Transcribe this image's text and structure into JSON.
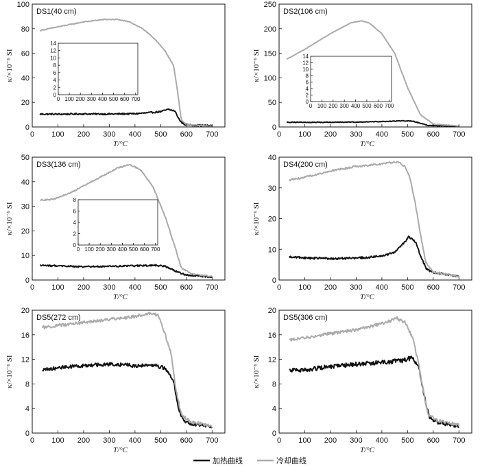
{
  "colors": {
    "heating": "#111111",
    "cooling": "#aaaaaa",
    "axis": "#111111"
  },
  "legend": {
    "heating": "加热曲线",
    "cooling": "冷却曲线"
  },
  "chart_data": [
    {
      "type": "line",
      "title": "DS1(40 cm)",
      "xlabel": "T/°C",
      "ylabel": "κ/×10⁻⁶ SI",
      "xlim": [
        0,
        750
      ],
      "ylim": [
        0,
        100
      ],
      "xticks": [
        0,
        100,
        200,
        300,
        400,
        500,
        600,
        700
      ],
      "yticks": [
        0,
        20,
        40,
        60,
        80,
        100
      ],
      "series": [
        {
          "name": "加热曲线",
          "noise": 0.6,
          "points": [
            [
              30,
              10.5
            ],
            [
              100,
              10.4
            ],
            [
              200,
              10.6
            ],
            [
              300,
              10.5
            ],
            [
              400,
              10.8
            ],
            [
              450,
              11.5
            ],
            [
              500,
              12.5
            ],
            [
              530,
              14.3
            ],
            [
              555,
              13
            ],
            [
              575,
              5
            ],
            [
              590,
              2.2
            ],
            [
              620,
              1.5
            ],
            [
              700,
              1.0
            ]
          ]
        },
        {
          "name": "冷却曲线",
          "noise": 0.3,
          "points": [
            [
              30,
              78.5
            ],
            [
              100,
              81.5
            ],
            [
              200,
              85.5
            ],
            [
              280,
              87.5
            ],
            [
              330,
              87.5
            ],
            [
              380,
              85.5
            ],
            [
              430,
              80
            ],
            [
              480,
              71
            ],
            [
              520,
              61
            ],
            [
              550,
              50
            ],
            [
              565,
              30
            ],
            [
              580,
              6
            ],
            [
              600,
              2
            ],
            [
              700,
              0.5
            ]
          ]
        }
      ],
      "inset": {
        "xlim": [
          0,
          720
        ],
        "ylim": [
          0,
          14
        ],
        "xticks": [
          0,
          100,
          200,
          300,
          400,
          500,
          600,
          700
        ],
        "yticks": [
          0,
          2,
          4,
          6,
          8,
          10,
          12,
          14
        ],
        "series": [
          {
            "name": "加热曲线",
            "noise": 0.35,
            "points": [
              [
                80,
                10.6
              ],
              [
                150,
                10.4
              ],
              [
                250,
                10.8
              ],
              [
                350,
                10.9
              ],
              [
                450,
                10.8
              ],
              [
                500,
                11.5
              ],
              [
                525,
                13.6
              ],
              [
                540,
                12.8
              ],
              [
                550,
                10
              ],
              [
                565,
                4
              ],
              [
                580,
                3.5
              ],
              [
                650,
                2.5
              ],
              [
                700,
                1.5
              ]
            ]
          }
        ]
      }
    },
    {
      "type": "line",
      "title": "DS2(106 cm)",
      "xlabel": "T/°C",
      "ylabel": "κ/×10⁻⁶ SI",
      "xlim": [
        0,
        750
      ],
      "ylim": [
        0,
        250
      ],
      "xticks": [
        0,
        100,
        200,
        300,
        400,
        500,
        600,
        700
      ],
      "yticks": [
        0,
        50,
        100,
        150,
        200,
        250
      ],
      "series": [
        {
          "name": "加热曲线",
          "noise": 0.7,
          "points": [
            [
              30,
              9.5
            ],
            [
              100,
              9.5
            ],
            [
              200,
              9.5
            ],
            [
              300,
              10
            ],
            [
              400,
              11
            ],
            [
              450,
              12
            ],
            [
              500,
              12.5
            ],
            [
              520,
              12
            ],
            [
              560,
              6
            ],
            [
              580,
              3
            ],
            [
              650,
              2
            ],
            [
              700,
              1.5
            ]
          ]
        },
        {
          "name": "冷却曲线",
          "noise": 0.4,
          "points": [
            [
              30,
              138
            ],
            [
              100,
              158
            ],
            [
              200,
              190
            ],
            [
              280,
              212
            ],
            [
              320,
              216
            ],
            [
              350,
              212
            ],
            [
              400,
              190
            ],
            [
              450,
              150
            ],
            [
              500,
              80
            ],
            [
              550,
              25
            ],
            [
              600,
              6
            ],
            [
              700,
              2
            ]
          ]
        }
      ],
      "inset": {
        "xlim": [
          0,
          720
        ],
        "ylim": [
          0,
          14
        ],
        "xticks": [
          0,
          100,
          200,
          300,
          400,
          500,
          600,
          700
        ],
        "yticks": [
          0,
          2,
          4,
          6,
          8,
          10,
          12,
          14
        ],
        "series": [
          {
            "name": "加热曲线",
            "noise": 0.45,
            "points": [
              [
                50,
                9.5
              ],
              [
                150,
                9.5
              ],
              [
                250,
                9.8
              ],
              [
                350,
                10
              ],
              [
                450,
                11
              ],
              [
                480,
                13.2
              ],
              [
                500,
                12
              ],
              [
                520,
                13.4
              ],
              [
                540,
                10
              ],
              [
                560,
                5.5
              ],
              [
                600,
                4.5
              ],
              [
                650,
                3.5
              ],
              [
                700,
                2.5
              ]
            ]
          }
        ]
      }
    },
    {
      "type": "line",
      "title": "DS3(136 cm)",
      "xlabel": "T/°C",
      "ylabel": "κ/×10⁻⁶ SI",
      "xlim": [
        0,
        750
      ],
      "ylim": [
        0,
        50
      ],
      "xticks": [
        0,
        100,
        200,
        300,
        400,
        500,
        600,
        700
      ],
      "yticks": [
        0,
        10,
        20,
        30,
        40,
        50
      ],
      "series": [
        {
          "name": "加热曲线",
          "noise": 0.3,
          "points": [
            [
              30,
              6
            ],
            [
              100,
              5.8
            ],
            [
              170,
              5.5
            ],
            [
              200,
              5.4
            ],
            [
              300,
              5.5
            ],
            [
              400,
              5.8
            ],
            [
              480,
              6
            ],
            [
              520,
              5.5
            ],
            [
              560,
              3.5
            ],
            [
              600,
              2
            ],
            [
              700,
              1.2
            ]
          ]
        },
        {
          "name": "冷却曲线",
          "noise": 0.25,
          "points": [
            [
              30,
              32.5
            ],
            [
              80,
              32.8
            ],
            [
              150,
              35.5
            ],
            [
              250,
              41
            ],
            [
              330,
              45.5
            ],
            [
              380,
              47
            ],
            [
              420,
              45
            ],
            [
              470,
              38
            ],
            [
              520,
              25
            ],
            [
              560,
              12
            ],
            [
              580,
              5
            ],
            [
              620,
              2.5
            ],
            [
              700,
              1.5
            ]
          ]
        }
      ],
      "inset": {
        "xlim": [
          0,
          720
        ],
        "ylim": [
          0,
          8
        ],
        "xticks": [
          0,
          100,
          200,
          300,
          400,
          500,
          600,
          700
        ],
        "yticks": [
          0,
          2,
          4,
          6,
          8
        ],
        "series": [
          {
            "name": "加热曲线",
            "noise": 0.35,
            "points": [
              [
                50,
                5.8
              ],
              [
                100,
                5.6
              ],
              [
                200,
                5.3
              ],
              [
                300,
                5.3
              ],
              [
                400,
                5.5
              ],
              [
                450,
                5.8
              ],
              [
                490,
                6.5
              ],
              [
                510,
                5.5
              ],
              [
                550,
                4
              ],
              [
                600,
                3
              ],
              [
                650,
                2
              ],
              [
                700,
                1.3
              ]
            ]
          }
        ]
      }
    },
    {
      "type": "line",
      "title": "DS4(200 cm)",
      "xlabel": "T/°C",
      "ylabel": "κ/×10⁻⁶ SI",
      "xlim": [
        0,
        750
      ],
      "ylim": [
        0,
        40
      ],
      "xticks": [
        0,
        100,
        200,
        300,
        400,
        500,
        600,
        700
      ],
      "yticks": [
        0,
        10,
        20,
        30,
        40
      ],
      "series": [
        {
          "name": "加热曲线",
          "noise": 0.35,
          "points": [
            [
              40,
              7.5
            ],
            [
              100,
              7.2
            ],
            [
              200,
              7
            ],
            [
              300,
              7.1
            ],
            [
              400,
              7.8
            ],
            [
              450,
              9
            ],
            [
              480,
              11.5
            ],
            [
              505,
              14
            ],
            [
              530,
              12.5
            ],
            [
              555,
              7
            ],
            [
              575,
              3.5
            ],
            [
              600,
              2.5
            ],
            [
              700,
              1.2
            ]
          ]
        },
        {
          "name": "冷却曲线",
          "noise": 0.3,
          "points": [
            [
              40,
              32.5
            ],
            [
              100,
              33.5
            ],
            [
              200,
              35.5
            ],
            [
              300,
              37
            ],
            [
              400,
              37.8
            ],
            [
              460,
              38.5
            ],
            [
              490,
              37
            ],
            [
              510,
              33
            ],
            [
              530,
              25
            ],
            [
              550,
              15
            ],
            [
              570,
              6
            ],
            [
              600,
              2.5
            ],
            [
              700,
              1.2
            ]
          ]
        }
      ]
    },
    {
      "type": "line",
      "title": "DS5(272 cm)",
      "xlabel": "T/°C",
      "ylabel": "κ/×10⁻⁶ SI",
      "xlim": [
        0,
        750
      ],
      "ylim": [
        0,
        20
      ],
      "xticks": [
        0,
        100,
        200,
        300,
        400,
        500,
        600,
        700
      ],
      "yticks": [
        0,
        4,
        8,
        12,
        16,
        20
      ],
      "series": [
        {
          "name": "加热曲线",
          "noise": 0.3,
          "points": [
            [
              40,
              10.4
            ],
            [
              100,
              10.6
            ],
            [
              200,
              11
            ],
            [
              300,
              11.2
            ],
            [
              400,
              11
            ],
            [
              480,
              11
            ],
            [
              520,
              10.5
            ],
            [
              550,
              8.5
            ],
            [
              570,
              4
            ],
            [
              590,
              1.8
            ],
            [
              650,
              1.3
            ],
            [
              700,
              1
            ]
          ]
        },
        {
          "name": "冷却曲线",
          "noise": 0.25,
          "points": [
            [
              40,
              17.2
            ],
            [
              100,
              17.5
            ],
            [
              200,
              18
            ],
            [
              300,
              18.5
            ],
            [
              400,
              19
            ],
            [
              450,
              19.5
            ],
            [
              490,
              19.2
            ],
            [
              510,
              17
            ],
            [
              540,
              13
            ],
            [
              560,
              7
            ],
            [
              580,
              3
            ],
            [
              620,
              1.8
            ],
            [
              700,
              1.2
            ]
          ]
        }
      ]
    },
    {
      "type": "line",
      "title": "DS5(306 cm)",
      "xlabel": "T/°C",
      "ylabel": "κ/×10⁻⁶ SI",
      "xlim": [
        0,
        750
      ],
      "ylim": [
        0,
        20
      ],
      "xticks": [
        0,
        100,
        200,
        300,
        400,
        500,
        600,
        700
      ],
      "yticks": [
        0,
        4,
        8,
        12,
        16,
        20
      ],
      "series": [
        {
          "name": "加热曲线",
          "noise": 0.35,
          "points": [
            [
              40,
              10.2
            ],
            [
              100,
              10.3
            ],
            [
              200,
              10.8
            ],
            [
              300,
              11.2
            ],
            [
              400,
              11.5
            ],
            [
              480,
              11.8
            ],
            [
              520,
              12.3
            ],
            [
              545,
              10.5
            ],
            [
              565,
              6
            ],
            [
              585,
              2.5
            ],
            [
              630,
              1.6
            ],
            [
              700,
              1.2
            ]
          ]
        },
        {
          "name": "冷却曲线",
          "noise": 0.25,
          "points": [
            [
              40,
              15.2
            ],
            [
              100,
              15.5
            ],
            [
              200,
              16.2
            ],
            [
              300,
              16.8
            ],
            [
              400,
              17.8
            ],
            [
              460,
              18.7
            ],
            [
              490,
              18
            ],
            [
              520,
              15.5
            ],
            [
              545,
              11
            ],
            [
              565,
              6
            ],
            [
              580,
              3
            ],
            [
              620,
              2
            ],
            [
              700,
              1.3
            ]
          ]
        }
      ]
    }
  ]
}
